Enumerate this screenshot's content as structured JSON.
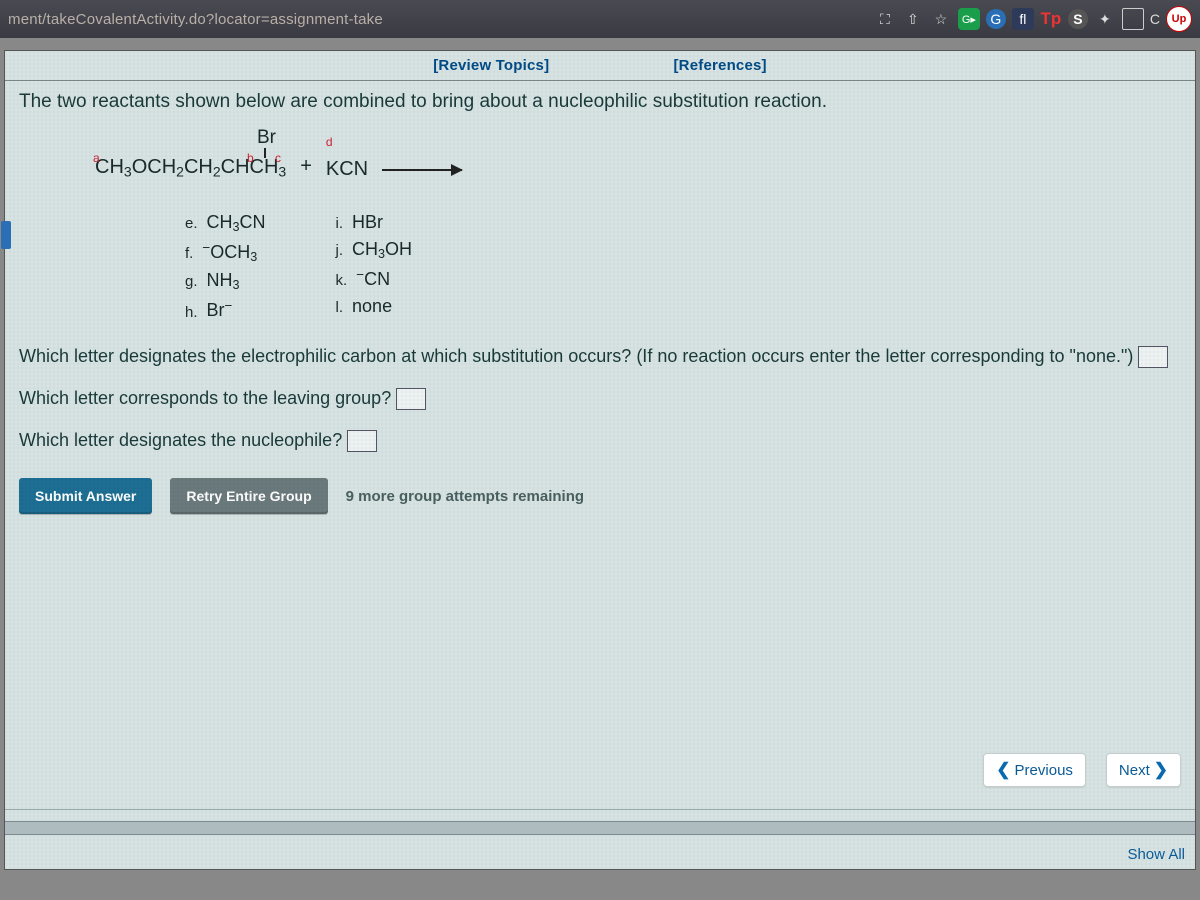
{
  "browser": {
    "url": "ment/takeCovalentActivity.do?locator=assignment-take",
    "tp": "Tp",
    "upd": "Up",
    "c": "C"
  },
  "links": {
    "review": "[Review Topics]",
    "references": "[References]"
  },
  "prompt": "The two reactants shown below are combined to bring about a nucleophilic substitution reaction.",
  "reaction": {
    "br": "Br",
    "main_html": "CH<sub>3</sub>OCH<sub>2</sub>CH<sub>2</sub>CHCH<sub>3</sub>",
    "plus": "+",
    "kcn_html": "KCN",
    "sup": {
      "a": "a",
      "b": "b",
      "c": "c",
      "d": "d"
    }
  },
  "options": {
    "col1": [
      {
        "lt": "e.",
        "html": "CH<sub>3</sub>CN"
      },
      {
        "lt": "f.",
        "html": "<span class='neg'>−</span>OCH<sub>3</sub>"
      },
      {
        "lt": "g.",
        "html": "NH<sub>3</sub>"
      },
      {
        "lt": "h.",
        "html": "Br<span class='neg'>−</span>"
      }
    ],
    "col2": [
      {
        "lt": "i.",
        "html": "HBr"
      },
      {
        "lt": "j.",
        "html": "CH<sub>3</sub>OH"
      },
      {
        "lt": "k.",
        "html": "<span class='neg'>−</span>CN"
      },
      {
        "lt": "l.",
        "html": "none"
      }
    ]
  },
  "q1a": "Which letter designates the electrophilic carbon at which substitution occurs? (If no reaction occurs enter the letter corresponding to \"none.\") ",
  "q2": "Which letter corresponds to the leaving group?",
  "q3": "Which letter designates the nucleophile?",
  "buttons": {
    "submit": "Submit Answer",
    "retry": "Retry Entire Group"
  },
  "attempts": "9 more group attempts remaining",
  "nav": {
    "prev": "Previous",
    "next": "Next"
  },
  "showall": "Show All"
}
